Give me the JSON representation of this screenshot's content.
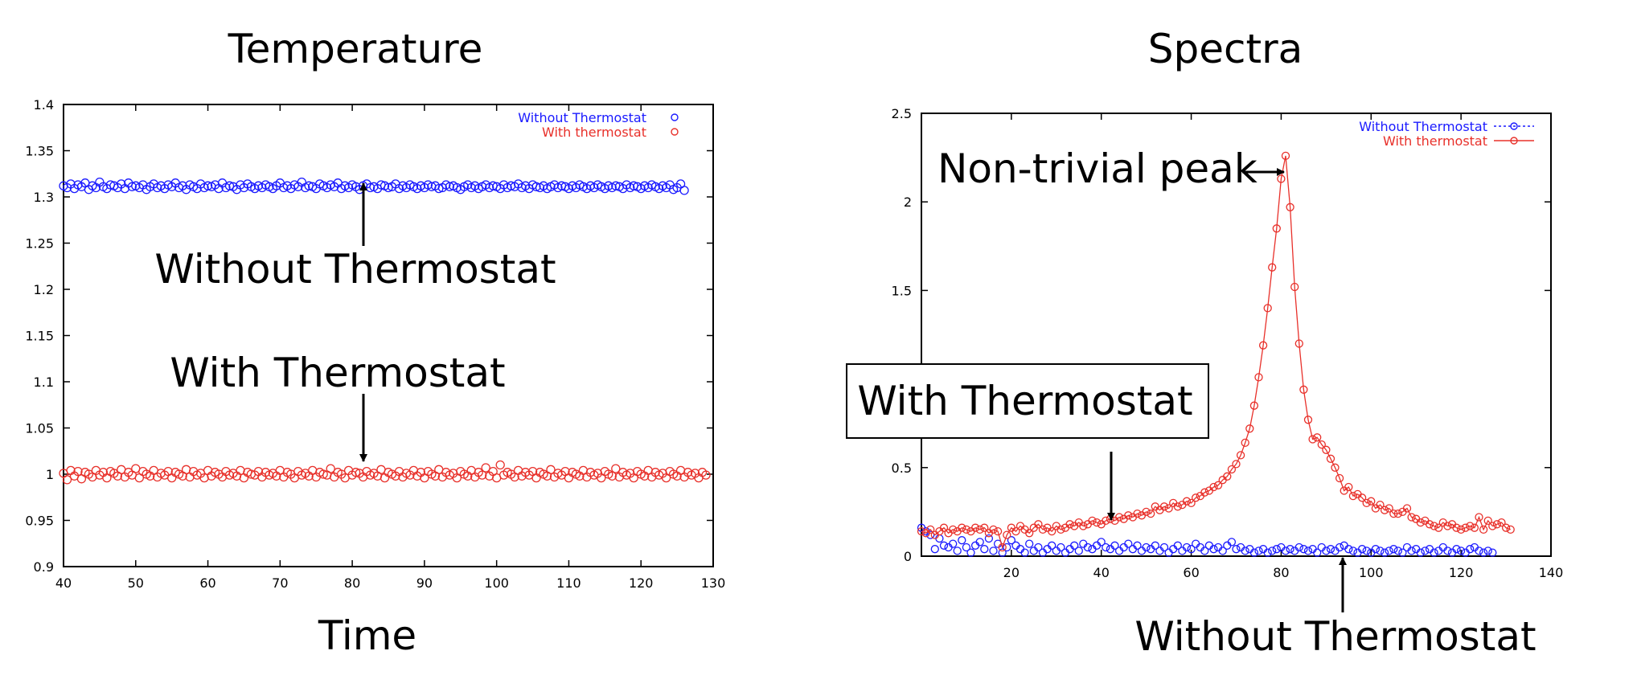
{
  "chart_data": [
    {
      "type": "scatter",
      "title": "Temperature",
      "xlabel": "Time",
      "ylabel": "",
      "xlim": [
        40,
        130
      ],
      "ylim": [
        0.9,
        1.4
      ],
      "xticks": [
        "40",
        "50",
        "60",
        "70",
        "80",
        "90",
        "100",
        "110",
        "120",
        "130"
      ],
      "yticks": [
        "0.9",
        "0.95",
        "1",
        "1.05",
        "1.1",
        "1.15",
        "1.2",
        "1.25",
        "1.3",
        "1.35",
        "1.4"
      ],
      "legend_position": "top-right",
      "series": [
        {
          "name": "Without Thermostat",
          "color": "#1a1aff",
          "marker": "circle",
          "x_start": 40,
          "x_end": 128,
          "x_step": 0.5,
          "values": [
            1.312,
            1.31,
            1.314,
            1.309,
            1.313,
            1.311,
            1.315,
            1.308,
            1.312,
            1.31,
            1.316,
            1.311,
            1.309,
            1.313,
            1.312,
            1.31,
            1.314,
            1.309,
            1.315,
            1.311,
            1.312,
            1.31,
            1.313,
            1.308,
            1.311,
            1.314,
            1.31,
            1.312,
            1.309,
            1.313,
            1.311,
            1.315,
            1.31,
            1.312,
            1.308,
            1.313,
            1.311,
            1.309,
            1.314,
            1.31,
            1.312,
            1.311,
            1.313,
            1.309,
            1.315,
            1.31,
            1.312,
            1.311,
            1.308,
            1.313,
            1.31,
            1.314,
            1.311,
            1.309,
            1.312,
            1.31,
            1.313,
            1.311,
            1.309,
            1.312,
            1.315,
            1.31,
            1.312,
            1.309,
            1.313,
            1.311,
            1.316,
            1.31,
            1.312,
            1.311,
            1.309,
            1.314,
            1.312,
            1.31,
            1.313,
            1.311,
            1.315,
            1.309,
            1.312,
            1.31,
            1.313,
            1.311,
            1.308,
            1.312,
            1.314,
            1.31,
            1.311,
            1.309,
            1.313,
            1.312,
            1.31,
            1.311,
            1.314,
            1.309,
            1.312,
            1.31,
            1.313,
            1.311,
            1.309,
            1.312,
            1.31,
            1.313,
            1.311,
            1.312,
            1.309,
            1.31,
            1.313,
            1.311,
            1.312,
            1.31,
            1.308,
            1.311,
            1.313,
            1.31,
            1.312,
            1.309,
            1.311,
            1.313,
            1.31,
            1.312,
            1.311,
            1.309,
            1.313,
            1.31,
            1.312,
            1.311,
            1.314,
            1.31,
            1.312,
            1.309,
            1.313,
            1.311,
            1.31,
            1.312,
            1.309,
            1.311,
            1.313,
            1.31,
            1.312,
            1.311,
            1.309,
            1.312,
            1.31,
            1.313,
            1.311,
            1.309,
            1.312,
            1.31,
            1.313,
            1.311,
            1.309,
            1.312,
            1.31,
            1.312,
            1.311,
            1.309,
            1.313,
            1.31,
            1.312,
            1.311,
            1.309,
            1.312,
            1.31,
            1.313,
            1.311,
            1.309,
            1.312,
            1.31,
            1.313,
            1.308,
            1.31,
            1.314,
            1.307
          ]
        },
        {
          "name": "With thermostat",
          "color": "#e8302a",
          "marker": "circle",
          "x_start": 40,
          "x_end": 128,
          "x_step": 0.5,
          "values": [
            1.001,
            0.994,
            1.004,
            0.998,
            1.003,
            0.995,
            1.002,
            1.0,
            0.997,
            1.004,
            0.999,
            1.002,
            0.996,
            1.003,
            1.001,
            0.998,
            1.005,
            0.997,
            1.002,
            0.999,
            1.006,
            0.996,
            1.003,
            1.0,
            0.998,
            1.004,
            0.997,
            1.001,
            0.999,
            1.003,
            0.996,
            1.002,
            1.0,
            0.998,
            1.005,
            0.997,
            1.003,
            0.999,
            1.001,
            0.996,
            1.004,
            0.998,
            1.002,
            1.0,
            0.997,
            1.003,
            0.999,
            1.001,
            0.998,
            1.004,
            0.996,
            1.002,
            1.0,
            0.999,
            1.003,
            0.997,
            1.002,
            0.999,
            1.001,
            0.998,
            1.004,
            0.997,
            1.002,
            1.0,
            0.996,
            1.003,
            0.999,
            1.001,
            0.998,
            1.004,
            0.997,
            1.002,
            1.0,
            0.999,
            1.006,
            0.997,
            1.002,
            1.0,
            0.996,
            1.004,
            0.999,
            1.002,
            1.001,
            0.997,
            1.003,
            0.999,
            1.001,
            0.998,
            1.005,
            0.996,
            1.002,
            1.0,
            0.998,
            1.003,
            0.997,
            1.001,
            0.999,
            1.004,
            0.998,
            1.002,
            0.996,
            1.003,
            1.0,
            0.998,
            1.005,
            0.997,
            1.002,
            0.999,
            1.001,
            0.996,
            1.003,
            1.0,
            0.998,
            1.004,
            0.997,
            1.002,
            0.999,
            1.007,
            0.998,
            1.003,
            0.996,
            1.01,
            0.999,
            1.002,
            1.0,
            0.997,
            1.004,
            0.998,
            1.002,
            0.999,
            1.003,
            0.996,
            1.002,
            1.0,
            0.998,
            1.005,
            0.997,
            1.001,
            0.999,
            1.003,
            0.996,
            1.002,
            1.0,
            0.998,
            1.004,
            0.997,
            1.002,
            0.999,
            1.001,
            0.996,
            1.003,
            1.0,
            0.998,
            1.006,
            0.997,
            1.002,
            0.999,
            1.001,
            0.996,
            1.003,
            1.0,
            0.998,
            1.004,
            0.997,
            1.002,
            0.999,
            1.001,
            0.996,
            1.003,
            1.0,
            0.998,
            1.004,
            0.997,
            1.002,
            0.999,
            1.001,
            0.996,
            1.002,
            0.999
          ]
        }
      ],
      "annotations": [
        {
          "text": "Without Thermostat",
          "arrow_to": [
            81.5,
            1.315
          ]
        },
        {
          "text": "With Thermostat",
          "arrow_to": [
            81.5,
            1.003
          ]
        }
      ]
    },
    {
      "type": "line",
      "title": "Spectra",
      "xlabel": "",
      "ylabel": "",
      "xlim": [
        0,
        140
      ],
      "ylim": [
        0,
        2.5
      ],
      "xticks": [
        "20",
        "40",
        "60",
        "80",
        "100",
        "120",
        "140"
      ],
      "yticks": [
        "0",
        "0.5",
        "1.5",
        "2",
        "2.5"
      ],
      "legend_position": "top-right",
      "series": [
        {
          "name": "Without Thermostat",
          "color": "#1a1aff",
          "marker": "circle",
          "line": "dotted-legend",
          "x_start": 0,
          "x_end": 127,
          "x_step": 1,
          "values": [
            0.16,
            0.14,
            0.12,
            0.04,
            0.1,
            0.06,
            0.05,
            0.07,
            0.03,
            0.09,
            0.05,
            0.02,
            0.06,
            0.08,
            0.04,
            0.1,
            0.03,
            0.07,
            0.02,
            0.05,
            0.09,
            0.06,
            0.04,
            0.02,
            0.07,
            0.03,
            0.05,
            0.02,
            0.04,
            0.06,
            0.03,
            0.05,
            0.02,
            0.04,
            0.06,
            0.03,
            0.07,
            0.05,
            0.04,
            0.06,
            0.08,
            0.05,
            0.04,
            0.06,
            0.03,
            0.05,
            0.07,
            0.04,
            0.06,
            0.03,
            0.05,
            0.04,
            0.06,
            0.03,
            0.05,
            0.02,
            0.04,
            0.06,
            0.03,
            0.05,
            0.04,
            0.07,
            0.05,
            0.03,
            0.06,
            0.04,
            0.05,
            0.03,
            0.06,
            0.08,
            0.04,
            0.05,
            0.03,
            0.04,
            0.02,
            0.03,
            0.04,
            0.02,
            0.03,
            0.04,
            0.05,
            0.03,
            0.04,
            0.03,
            0.05,
            0.04,
            0.03,
            0.04,
            0.02,
            0.05,
            0.03,
            0.04,
            0.03,
            0.05,
            0.06,
            0.04,
            0.03,
            0.02,
            0.04,
            0.03,
            0.02,
            0.04,
            0.03,
            0.02,
            0.03,
            0.04,
            0.03,
            0.02,
            0.05,
            0.03,
            0.04,
            0.02,
            0.03,
            0.04,
            0.02,
            0.03,
            0.05,
            0.03,
            0.02,
            0.04,
            0.03,
            0.02,
            0.04,
            0.05,
            0.03,
            0.02,
            0.03,
            0.02
          ]
        },
        {
          "name": "With thermostat",
          "color": "#e8302a",
          "marker": "circle",
          "line": "solid",
          "x_start": 0,
          "x_end": 127,
          "x_step": 1,
          "values": [
            0.14,
            0.13,
            0.15,
            0.12,
            0.14,
            0.16,
            0.13,
            0.15,
            0.14,
            0.16,
            0.15,
            0.14,
            0.16,
            0.15,
            0.16,
            0.13,
            0.15,
            0.14,
            0.05,
            0.12,
            0.16,
            0.14,
            0.17,
            0.15,
            0.13,
            0.16,
            0.18,
            0.15,
            0.16,
            0.14,
            0.17,
            0.15,
            0.16,
            0.18,
            0.17,
            0.19,
            0.17,
            0.18,
            0.2,
            0.19,
            0.18,
            0.2,
            0.21,
            0.2,
            0.22,
            0.21,
            0.23,
            0.22,
            0.24,
            0.23,
            0.25,
            0.24,
            0.28,
            0.26,
            0.28,
            0.27,
            0.3,
            0.28,
            0.29,
            0.31,
            0.3,
            0.33,
            0.34,
            0.36,
            0.37,
            0.39,
            0.4,
            0.43,
            0.45,
            0.49,
            0.52,
            0.57,
            0.64,
            0.72,
            0.85,
            1.01,
            1.19,
            1.4,
            1.63,
            1.85,
            2.13,
            2.26,
            1.97,
            1.52,
            1.2,
            0.94,
            0.77,
            0.66,
            0.67,
            0.63,
            0.6,
            0.55,
            0.5,
            0.44,
            0.37,
            0.39,
            0.34,
            0.35,
            0.33,
            0.3,
            0.31,
            0.27,
            0.29,
            0.26,
            0.27,
            0.24,
            0.24,
            0.25,
            0.27,
            0.22,
            0.21,
            0.19,
            0.2,
            0.18,
            0.17,
            0.16,
            0.19,
            0.17,
            0.18,
            0.16,
            0.15,
            0.16,
            0.17,
            0.16,
            0.22,
            0.15,
            0.2,
            0.17,
            0.18,
            0.19,
            0.16,
            0.15
          ]
        }
      ],
      "annotations": [
        {
          "text": "Non-trivial peak",
          "arrow_to": [
            81,
            2.2
          ]
        },
        {
          "text": "With Thermostat",
          "boxed": true,
          "arrow_to": [
            41,
            0.2
          ]
        },
        {
          "text": "Without Thermostat",
          "arrow_to": [
            94,
            0.04
          ]
        }
      ]
    }
  ]
}
